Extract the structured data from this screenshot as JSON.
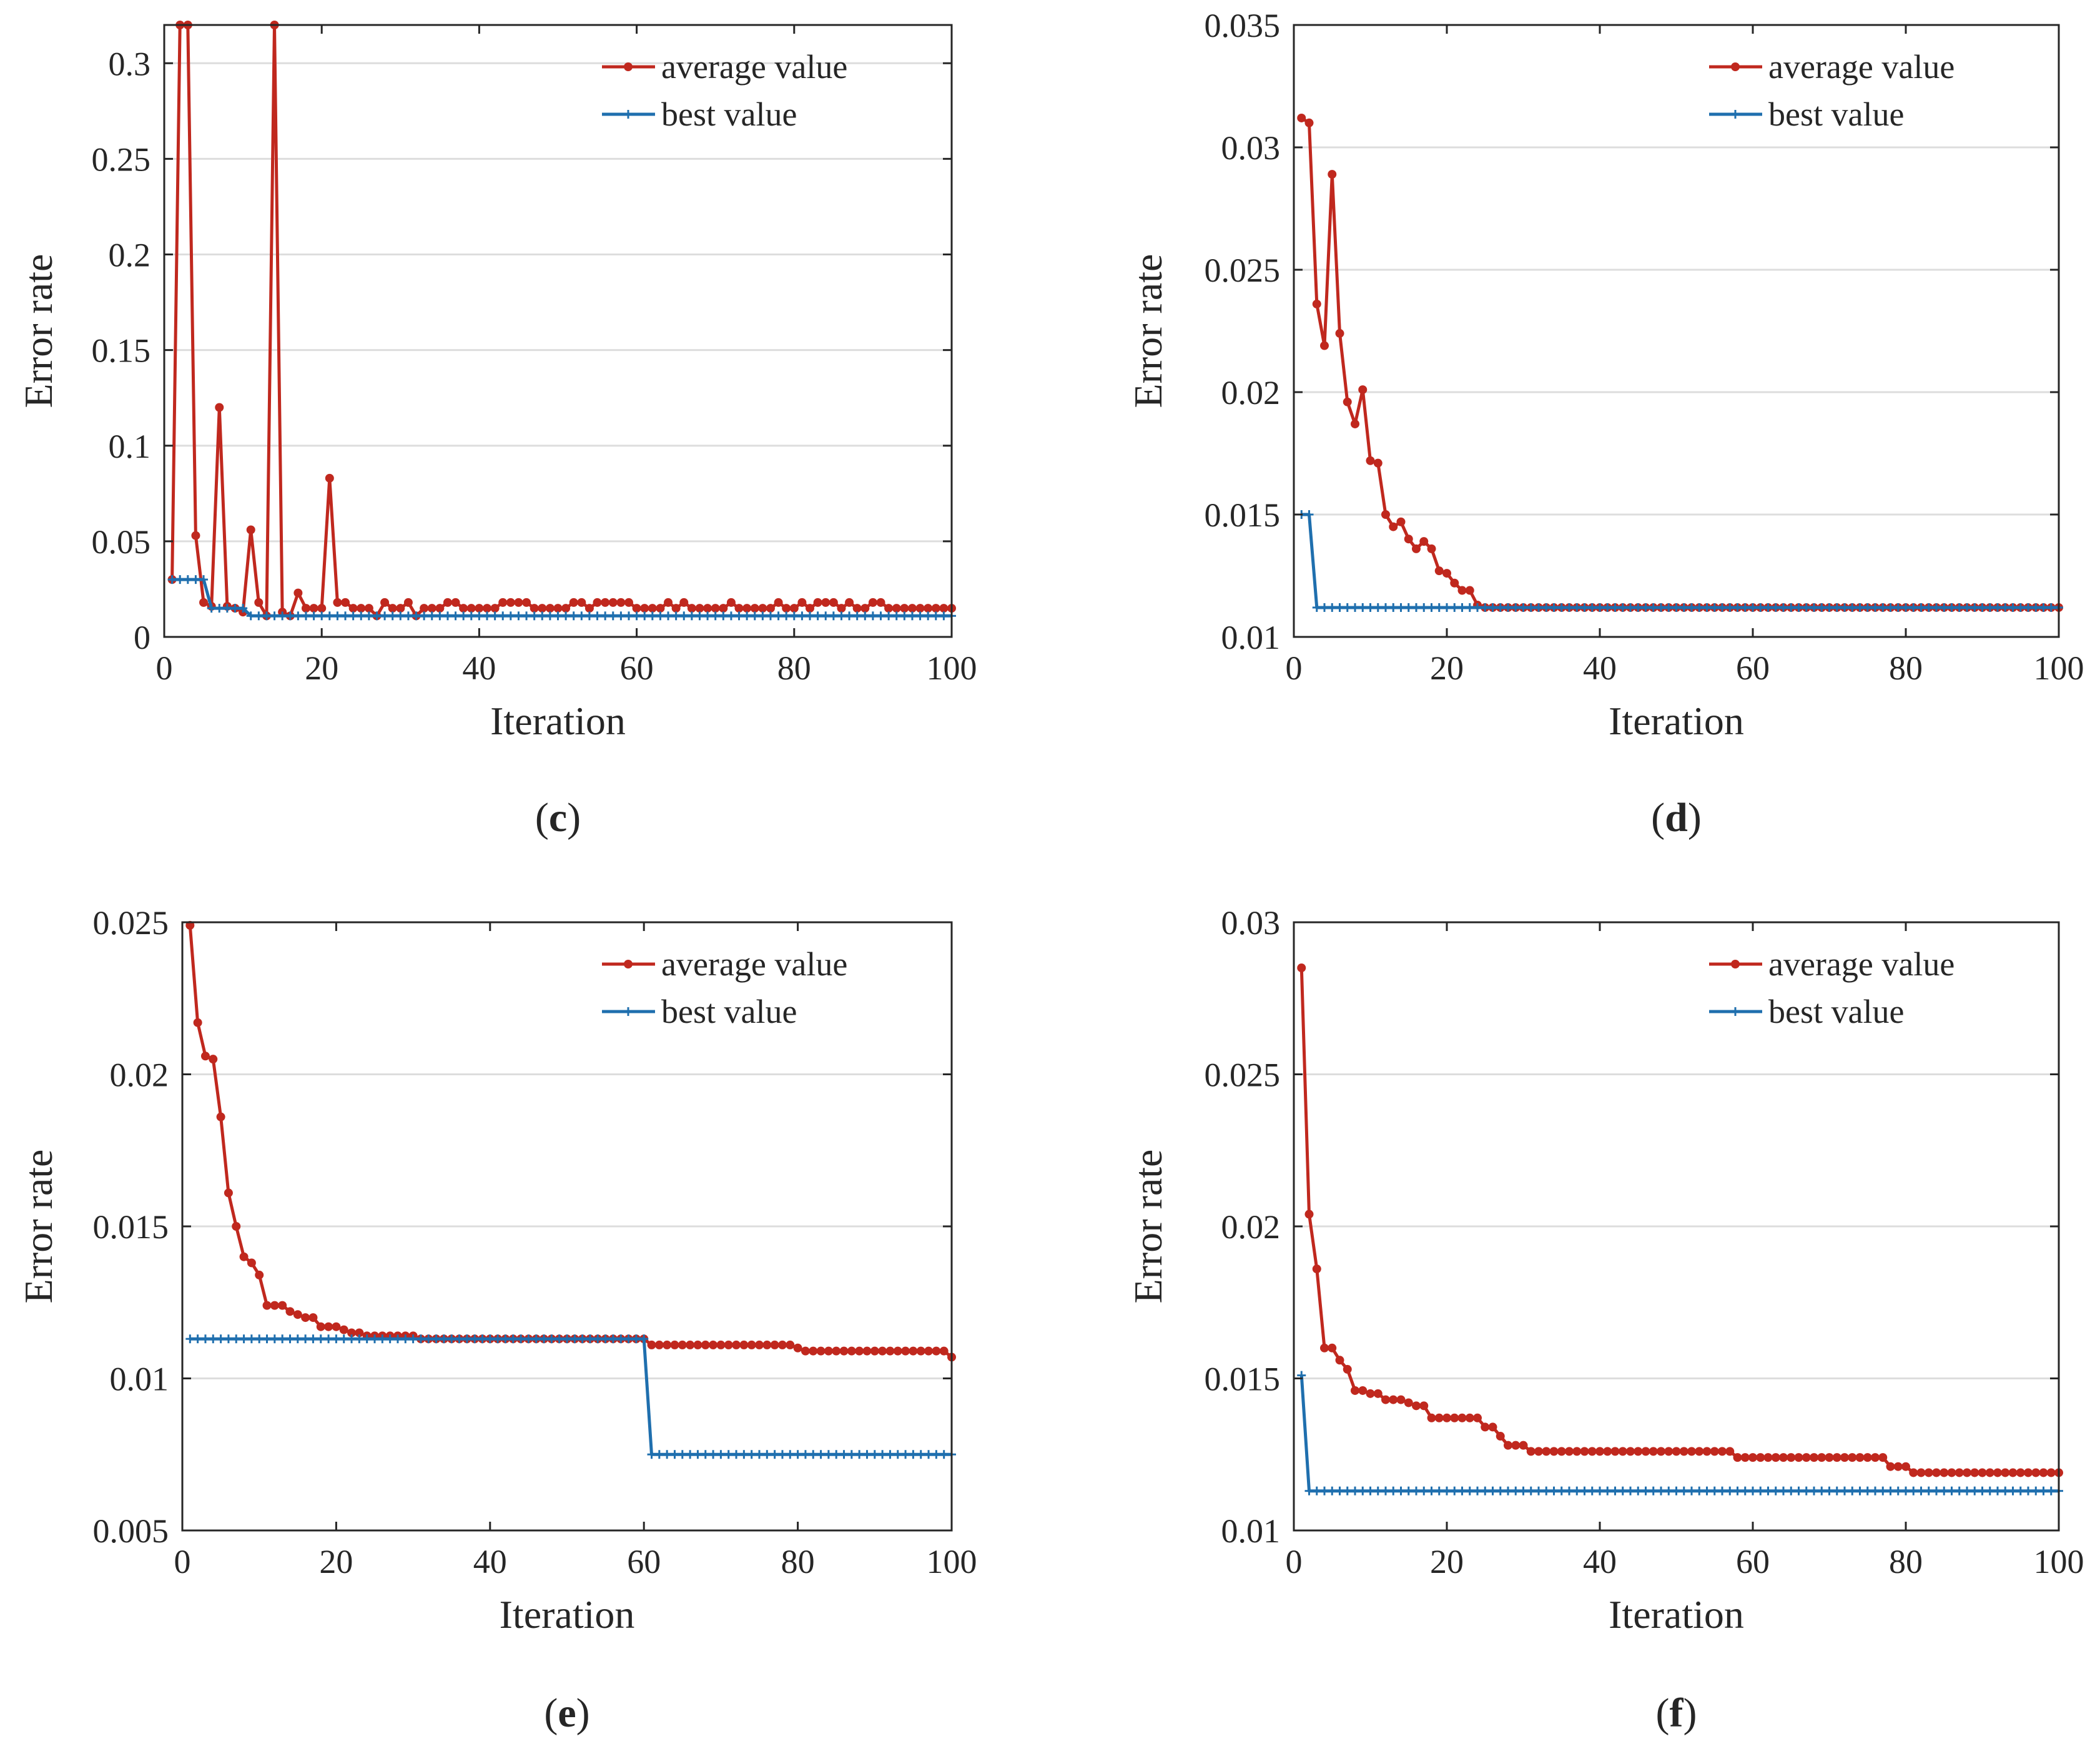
{
  "colors": {
    "average": "#c0281e",
    "best": "#1f6fae",
    "grid": "#dddddd",
    "axis": "#262626"
  },
  "chart_data": [
    {
      "id": "c",
      "caption": {
        "open": "(",
        "letter": "c",
        "close": ")"
      },
      "type": "line",
      "xlabel": "Iteration",
      "ylabel": "Error rate",
      "xlim": [
        0,
        100
      ],
      "ylim": [
        0,
        0.32
      ],
      "xticks": [
        0,
        20,
        40,
        60,
        80,
        100
      ],
      "xtick_labels": [
        "0",
        "20",
        "40",
        "60",
        "80",
        "100"
      ],
      "yticks": [
        0,
        0.05,
        0.1,
        0.15,
        0.2,
        0.25,
        0.3
      ],
      "ytick_labels": [
        "0",
        "0.05",
        "0.1",
        "0.15",
        "0.2",
        "0.25",
        "0.3"
      ],
      "grid": "horizontal",
      "legend_position": "top-right",
      "series": [
        {
          "name": "average value",
          "key": "average",
          "marker": "dot",
          "points": [
            [
              1,
              0.03
            ],
            [
              2,
              0.32
            ],
            [
              3,
              0.32
            ],
            [
              4,
              0.053
            ],
            [
              5,
              0.018
            ],
            [
              6,
              0.016
            ],
            [
              7,
              0.12
            ],
            [
              8,
              0.016
            ],
            [
              9,
              0.015
            ],
            [
              10,
              0.013
            ],
            [
              11,
              0.056
            ],
            [
              12,
              0.018
            ],
            [
              13,
              0.011
            ],
            [
              14,
              0.32
            ],
            [
              15,
              0.013
            ],
            [
              16,
              0.011
            ],
            [
              17,
              0.023
            ],
            [
              18,
              0.015
            ],
            [
              19,
              0.015
            ],
            [
              20,
              0.015
            ],
            [
              21,
              0.083
            ],
            [
              22,
              0.018
            ],
            [
              23,
              0.018
            ],
            [
              24,
              0.015
            ],
            [
              25,
              0.015
            ],
            [
              26,
              0.015
            ],
            [
              27,
              0.011
            ],
            [
              28,
              0.018
            ],
            [
              29,
              0.015
            ],
            [
              30,
              0.015
            ],
            [
              31,
              0.018
            ],
            [
              32,
              0.011
            ],
            [
              33,
              0.015
            ],
            [
              34,
              0.015
            ],
            [
              35,
              0.015
            ],
            [
              36,
              0.018
            ],
            [
              37,
              0.018
            ],
            [
              38,
              0.015
            ],
            [
              39,
              0.015
            ],
            [
              40,
              0.015
            ],
            [
              41,
              0.015
            ],
            [
              42,
              0.015
            ],
            [
              43,
              0.018
            ],
            [
              44,
              0.018
            ],
            [
              45,
              0.018
            ],
            [
              46,
              0.018
            ],
            [
              47,
              0.015
            ],
            [
              48,
              0.015
            ],
            [
              49,
              0.015
            ],
            [
              50,
              0.015
            ],
            [
              51,
              0.015
            ],
            [
              52,
              0.018
            ],
            [
              53,
              0.018
            ],
            [
              54,
              0.015
            ],
            [
              55,
              0.018
            ],
            [
              56,
              0.018
            ],
            [
              57,
              0.018
            ],
            [
              58,
              0.018
            ],
            [
              59,
              0.018
            ],
            [
              60,
              0.015
            ],
            [
              61,
              0.015
            ],
            [
              62,
              0.015
            ],
            [
              63,
              0.015
            ],
            [
              64,
              0.018
            ],
            [
              65,
              0.015
            ],
            [
              66,
              0.018
            ],
            [
              67,
              0.015
            ],
            [
              68,
              0.015
            ],
            [
              69,
              0.015
            ],
            [
              70,
              0.015
            ],
            [
              71,
              0.015
            ],
            [
              72,
              0.018
            ],
            [
              73,
              0.015
            ],
            [
              74,
              0.015
            ],
            [
              75,
              0.015
            ],
            [
              76,
              0.015
            ],
            [
              77,
              0.015
            ],
            [
              78,
              0.018
            ],
            [
              79,
              0.015
            ],
            [
              80,
              0.015
            ],
            [
              81,
              0.018
            ],
            [
              82,
              0.015
            ],
            [
              83,
              0.018
            ],
            [
              84,
              0.018
            ],
            [
              85,
              0.018
            ],
            [
              86,
              0.015
            ],
            [
              87,
              0.018
            ],
            [
              88,
              0.015
            ],
            [
              89,
              0.015
            ],
            [
              90,
              0.018
            ],
            [
              91,
              0.018
            ],
            [
              92,
              0.015
            ],
            [
              93,
              0.015
            ],
            [
              94,
              0.015
            ],
            [
              95,
              0.015
            ],
            [
              96,
              0.015
            ],
            [
              97,
              0.015
            ],
            [
              98,
              0.015
            ],
            [
              99,
              0.015
            ],
            [
              100,
              0.015
            ]
          ]
        },
        {
          "name": "best value",
          "key": "best",
          "marker": "plus",
          "points": [
            [
              1,
              0.03
            ],
            [
              4,
              0.03
            ],
            [
              6,
              0.015
            ],
            [
              10,
              0.015
            ],
            [
              11,
              0.011
            ],
            [
              100,
              0.011
            ]
          ]
        }
      ]
    },
    {
      "id": "d",
      "caption": {
        "open": "(",
        "letter": "d",
        "close": ")"
      },
      "type": "line",
      "xlabel": "Iteration",
      "ylabel": "Error rate",
      "xlim": [
        0,
        100
      ],
      "ylim": [
        0.01,
        0.035
      ],
      "xticks": [
        0,
        20,
        40,
        60,
        80,
        100
      ],
      "xtick_labels": [
        "0",
        "20",
        "40",
        "60",
        "80",
        "100"
      ],
      "yticks": [
        0.01,
        0.015,
        0.02,
        0.025,
        0.03,
        0.035
      ],
      "ytick_labels": [
        "0.01",
        "0.015",
        "0.02",
        "0.025",
        "0.03",
        "0.035"
      ],
      "grid": "horizontal",
      "legend_position": "top-right",
      "series": [
        {
          "name": "average value",
          "key": "average",
          "marker": "dot",
          "points": [
            [
              1,
              0.0312
            ],
            [
              2,
              0.031
            ],
            [
              3,
              0.0236
            ],
            [
              4,
              0.0219
            ],
            [
              5,
              0.0289
            ],
            [
              6,
              0.0224
            ],
            [
              7,
              0.0196
            ],
            [
              8,
              0.0187
            ],
            [
              9,
              0.0201
            ],
            [
              10,
              0.0172
            ],
            [
              11,
              0.0171
            ],
            [
              12,
              0.015
            ],
            [
              13,
              0.0145
            ],
            [
              14,
              0.0147
            ],
            [
              15,
              0.014
            ],
            [
              16,
              0.0136
            ],
            [
              17,
              0.0139
            ],
            [
              18,
              0.0136
            ],
            [
              19,
              0.0127
            ],
            [
              20,
              0.0126
            ],
            [
              21,
              0.0122
            ],
            [
              22,
              0.0119
            ],
            [
              23,
              0.0119
            ],
            [
              24,
              0.0113
            ],
            [
              25,
              0.0112
            ],
            [
              100,
              0.0112
            ]
          ]
        },
        {
          "name": "best value",
          "key": "best",
          "marker": "plus",
          "points": [
            [
              1,
              0.015
            ],
            [
              2,
              0.015
            ],
            [
              3,
              0.0112
            ],
            [
              100,
              0.0112
            ]
          ]
        }
      ]
    },
    {
      "id": "e",
      "caption": {
        "open": "(",
        "letter": "e",
        "close": ")"
      },
      "type": "line",
      "xlabel": "Iteration",
      "ylabel": "Error rate",
      "xlim": [
        0,
        100
      ],
      "ylim": [
        0.005,
        0.025
      ],
      "xticks": [
        0,
        20,
        40,
        60,
        80,
        100
      ],
      "xtick_labels": [
        "0",
        "20",
        "40",
        "60",
        "80",
        "100"
      ],
      "yticks": [
        0.005,
        0.01,
        0.015,
        0.02,
        0.025
      ],
      "ytick_labels": [
        "0.005",
        "0.01",
        "0.015",
        "0.02",
        "0.025"
      ],
      "grid": "horizontal",
      "legend_position": "top-right",
      "series": [
        {
          "name": "average value",
          "key": "average",
          "marker": "dot",
          "points": [
            [
              1,
              0.0249
            ],
            [
              2,
              0.0217
            ],
            [
              3,
              0.0206
            ],
            [
              4,
              0.0205
            ],
            [
              5,
              0.0186
            ],
            [
              6,
              0.0161
            ],
            [
              7,
              0.015
            ],
            [
              8,
              0.014
            ],
            [
              9,
              0.0138
            ],
            [
              10,
              0.0134
            ],
            [
              11,
              0.0124
            ],
            [
              12,
              0.0124
            ],
            [
              13,
              0.0124
            ],
            [
              14,
              0.0122
            ],
            [
              15,
              0.0121
            ],
            [
              16,
              0.012
            ],
            [
              17,
              0.012
            ],
            [
              18,
              0.0117
            ],
            [
              19,
              0.0117
            ],
            [
              20,
              0.0117
            ],
            [
              21,
              0.0116
            ],
            [
              22,
              0.0115
            ],
            [
              23,
              0.0115
            ],
            [
              24,
              0.0114
            ],
            [
              25,
              0.0114
            ],
            [
              26,
              0.0114
            ],
            [
              27,
              0.0114
            ],
            [
              28,
              0.0114
            ],
            [
              29,
              0.0114
            ],
            [
              30,
              0.0114
            ],
            [
              31,
              0.0113
            ],
            [
              60,
              0.0113
            ],
            [
              61,
              0.0111
            ],
            [
              79,
              0.0111
            ],
            [
              80,
              0.011
            ],
            [
              81,
              0.0109
            ],
            [
              82,
              0.0109
            ],
            [
              99,
              0.0109
            ],
            [
              100,
              0.0107
            ]
          ]
        },
        {
          "name": "best value",
          "key": "best",
          "marker": "plus",
          "points": [
            [
              1,
              0.0113
            ],
            [
              60,
              0.0113
            ],
            [
              61,
              0.0075
            ],
            [
              100,
              0.0075
            ]
          ]
        }
      ]
    },
    {
      "id": "f",
      "caption": {
        "open": "(",
        "letter": "f",
        "close": ")"
      },
      "type": "line",
      "xlabel": "Iteration",
      "ylabel": "Error rate",
      "xlim": [
        0,
        100
      ],
      "ylim": [
        0.01,
        0.03
      ],
      "xticks": [
        0,
        20,
        40,
        60,
        80,
        100
      ],
      "xtick_labels": [
        "0",
        "20",
        "40",
        "60",
        "80",
        "100"
      ],
      "yticks": [
        0.01,
        0.015,
        0.02,
        0.025,
        0.03
      ],
      "ytick_labels": [
        "0.01",
        "0.015",
        "0.02",
        "0.025",
        "0.03"
      ],
      "grid": "horizontal",
      "legend_position": "top-right",
      "series": [
        {
          "name": "average value",
          "key": "average",
          "marker": "dot",
          "points": [
            [
              1,
              0.0285
            ],
            [
              2,
              0.0204
            ],
            [
              3,
              0.0186
            ],
            [
              4,
              0.016
            ],
            [
              5,
              0.016
            ],
            [
              6,
              0.0156
            ],
            [
              7,
              0.0153
            ],
            [
              8,
              0.0146
            ],
            [
              9,
              0.0146
            ],
            [
              10,
              0.0145
            ],
            [
              11,
              0.0145
            ],
            [
              12,
              0.0143
            ],
            [
              13,
              0.0143
            ],
            [
              14,
              0.0143
            ],
            [
              15,
              0.0142
            ],
            [
              16,
              0.0141
            ],
            [
              17,
              0.0141
            ],
            [
              18,
              0.0137
            ],
            [
              19,
              0.0137
            ],
            [
              24,
              0.0137
            ],
            [
              25,
              0.0134
            ],
            [
              26,
              0.0134
            ],
            [
              27,
              0.0131
            ],
            [
              28,
              0.0128
            ],
            [
              29,
              0.0128
            ],
            [
              30,
              0.0128
            ],
            [
              31,
              0.0126
            ],
            [
              57,
              0.0126
            ],
            [
              58,
              0.0124
            ],
            [
              77,
              0.0124
            ],
            [
              78,
              0.0121
            ],
            [
              80,
              0.0121
            ],
            [
              81,
              0.0119
            ],
            [
              100,
              0.0119
            ]
          ]
        },
        {
          "name": "best value",
          "key": "best",
          "marker": "plus",
          "points": [
            [
              1,
              0.0151
            ],
            [
              2,
              0.0113
            ],
            [
              100,
              0.0113
            ]
          ]
        }
      ]
    }
  ]
}
